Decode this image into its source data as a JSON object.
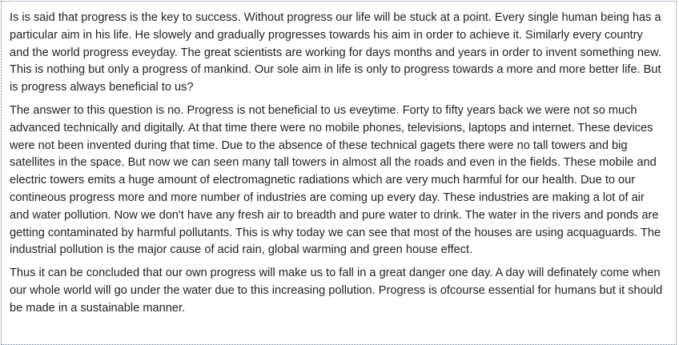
{
  "document": {
    "paragraphs": [
      "Is is said that progress is the key to success. Without progress our life will be stuck at a point. Every single human being has a particular aim in his life. He slowely and gradually progresses towards his aim in order to achieve it. Similarly every country and the world progress eveyday. The great scientists are working for days months and years in order to invent something new. This is nothing but only a progress of mankind. Our sole aim in life is only to progress towards a more and more better life. But is progress always beneficial to us?",
      "The answer to this question is no. Progress is not beneficial to us eveytime. Forty to fifty years back we were not so much advanced technically and digitally. At that time there were no mobile phones, televisions, laptops and internet. These devices were not been invented during that time. Due to the absence of these technical gagets there were no tall towers and big satellites in the space. But now we can seen many tall towers in almost all the roads and even in the fields. These mobile and electric towers emits a huge amount of electromagnetic radiations which are very much harmful for our health. Due to our contineous progress more and more number of industries are coming up every day. These industries are making a lot of air and water pollution. Now we don't have any fresh air to breadth and pure water to drink. The water in the rivers and ponds are getting contaminated by harmful pollutants. This is why today we can see that most of the houses are using acquaguards. The industrial pollution is the major cause of acid rain, global warming and green house effect.",
      "Thus it can be concluded that our own progress will make us to fall in a great danger one day. A day will definately come when our whole world will go under the water due to this increasing pollution. Progress is ofcourse essential for humans but it should be made in a sustainable manner."
    ]
  }
}
